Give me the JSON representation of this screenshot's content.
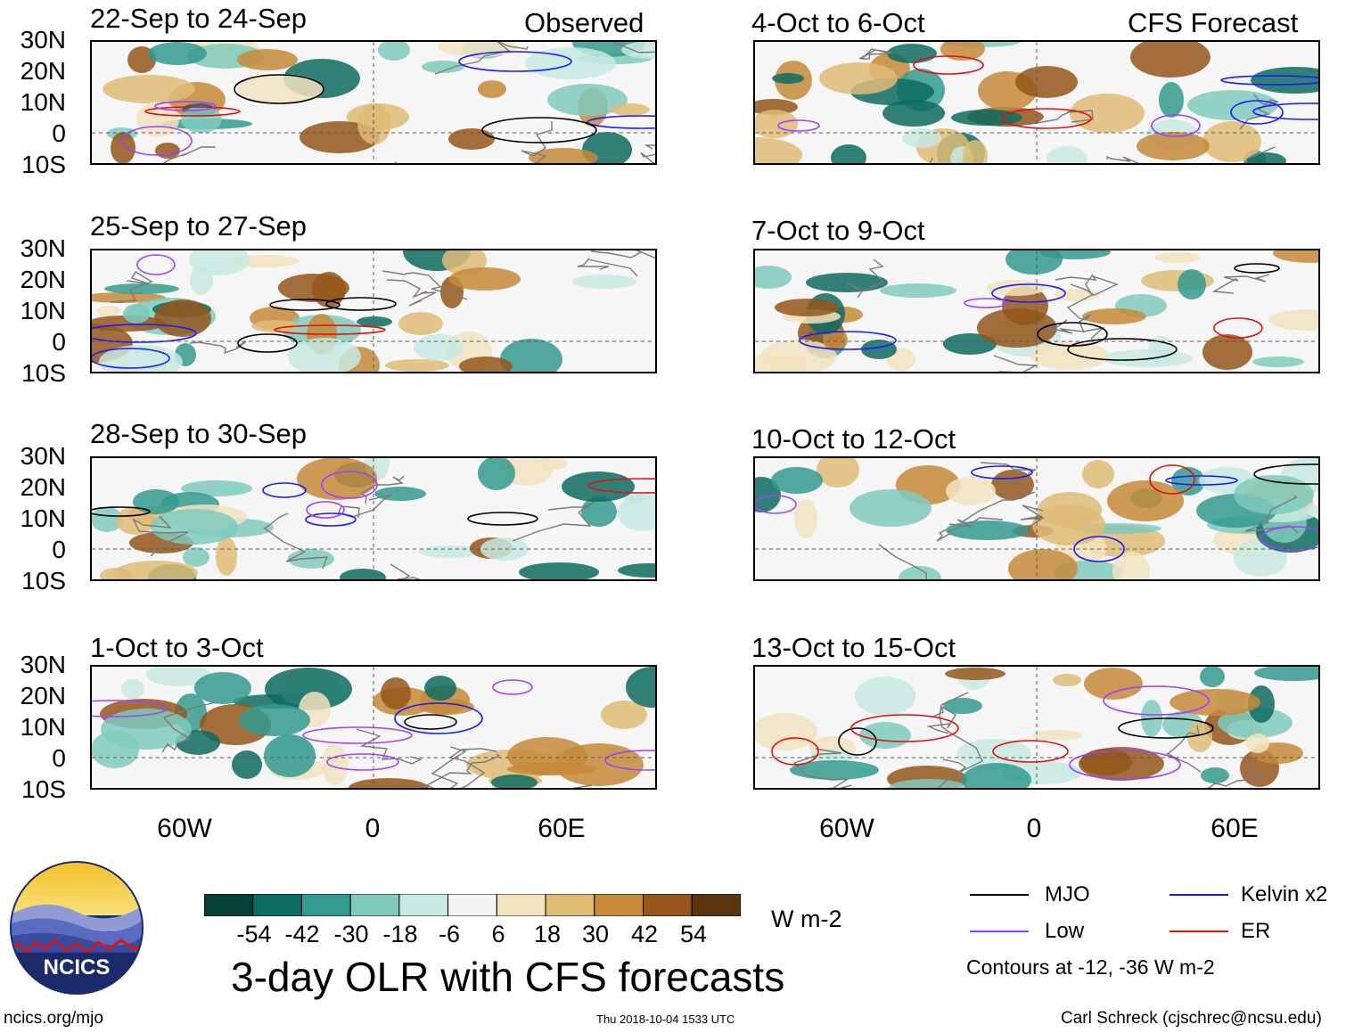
{
  "headings": {
    "observed": "Observed",
    "forecast": "CFS Forecast"
  },
  "panels": [
    {
      "id": "p1",
      "title": "22-Sep to 24-Sep",
      "column": "observed"
    },
    {
      "id": "p2",
      "title": "25-Sep to 27-Sep",
      "column": "observed"
    },
    {
      "id": "p3",
      "title": "28-Sep to 30-Sep",
      "column": "observed"
    },
    {
      "id": "p4",
      "title": "1-Oct to 3-Oct",
      "column": "observed"
    },
    {
      "id": "p5",
      "title": "4-Oct to 6-Oct",
      "column": "forecast"
    },
    {
      "id": "p6",
      "title": "7-Oct to 9-Oct",
      "column": "forecast"
    },
    {
      "id": "p7",
      "title": "10-Oct to 12-Oct",
      "column": "forecast"
    },
    {
      "id": "p8",
      "title": "13-Oct to 15-Oct",
      "column": "forecast"
    }
  ],
  "lat_labels": [
    "30N",
    "20N",
    "10N",
    "0",
    "10S"
  ],
  "lon_labels": [
    "60W",
    "0",
    "60E"
  ],
  "colorbar": {
    "colors": [
      "#063f38",
      "#0e6b60",
      "#339a8f",
      "#7fcabd",
      "#c7e9e2",
      "#f4f4f4",
      "#f2e3bf",
      "#dfbb76",
      "#c58a3a",
      "#94561a",
      "#5c3410"
    ],
    "labels": [
      "-54",
      "-42",
      "-30",
      "-18",
      "-6",
      "6",
      "18",
      "30",
      "42",
      "54"
    ],
    "units": "W m-2"
  },
  "legend": {
    "items": [
      {
        "label": "MJO",
        "color": "#000000"
      },
      {
        "label": "Kelvin x2",
        "color": "#1a1aff"
      },
      {
        "label": "Low",
        "color": "#a040ff"
      },
      {
        "label": "ER",
        "color": "#e01010"
      }
    ],
    "note": "Contours at -12, -36 W m-2"
  },
  "main_title": "3-day OLR with CFS forecasts",
  "logo_text": "NCICS",
  "footer": {
    "url": "ncics.org/mjo",
    "timestamp": "Thu 2018-10-04 1533 UTC",
    "author": "Carl Schreck (cjschrec@ncsu.edu)"
  }
}
